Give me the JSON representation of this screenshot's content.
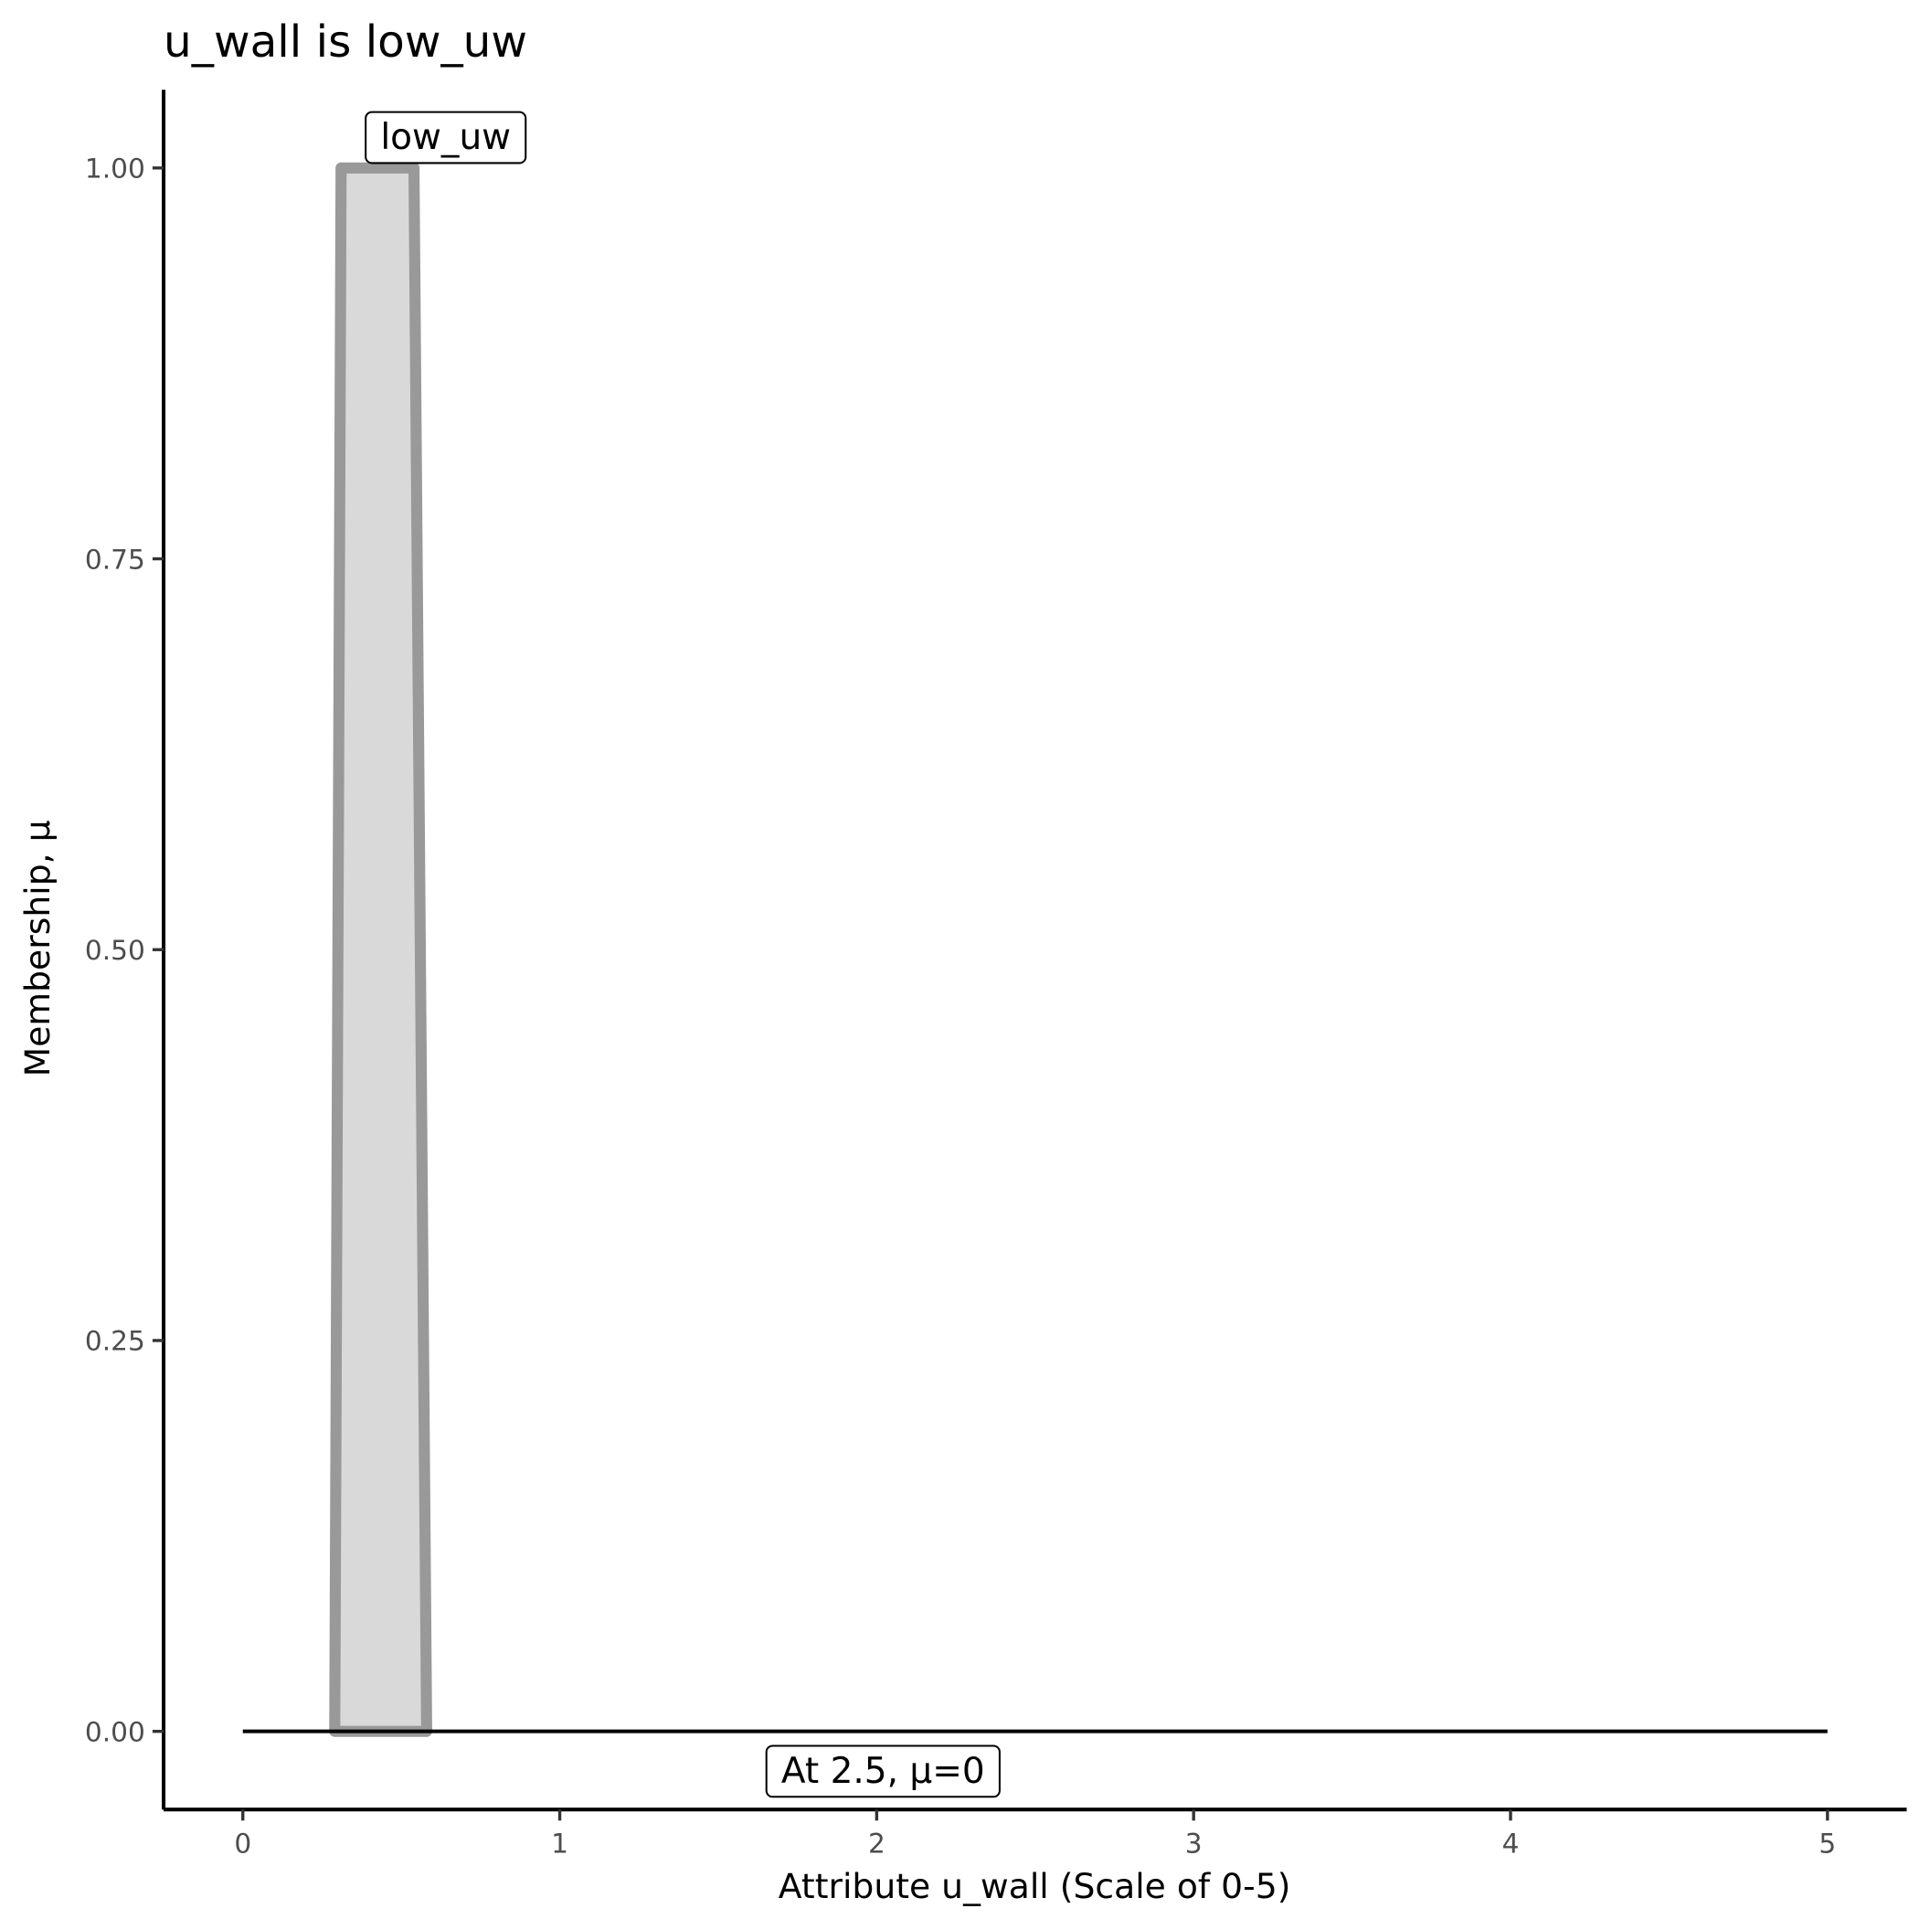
{
  "chart_data": {
    "type": "area",
    "title": "u_wall is low_uw",
    "xlabel": "Attribute u_wall (Scale of 0-5)",
    "ylabel": "Membership, μ",
    "xlim": [
      -0.25,
      5.25
    ],
    "ylim": [
      -0.05,
      1.05
    ],
    "x_ticks": [
      0,
      1,
      2,
      3,
      4,
      5
    ],
    "x_tick_labels": [
      "0",
      "1",
      "2",
      "3",
      "4",
      "5"
    ],
    "y_ticks": [
      0,
      0.25,
      0.5,
      0.75,
      1.0
    ],
    "y_tick_labels": [
      "0.00",
      "0.25",
      "0.50",
      "0.75",
      "1.00"
    ],
    "grid": false,
    "series": [
      {
        "x": [
          0.29,
          0.31,
          0.54,
          0.58
        ],
        "y": [
          0,
          1,
          1,
          0
        ],
        "fill": "#d9d9d9",
        "stroke": "#999999"
      }
    ],
    "reference_line": {
      "x": [
        0,
        5
      ],
      "y": [
        0,
        0
      ],
      "color": "#000000"
    },
    "annotations": [
      {
        "text": "low_uw",
        "x": 0.64,
        "y": 1.02
      },
      {
        "text": "At 2.5, μ=0",
        "x": 2.02,
        "y": -0.025
      }
    ]
  }
}
